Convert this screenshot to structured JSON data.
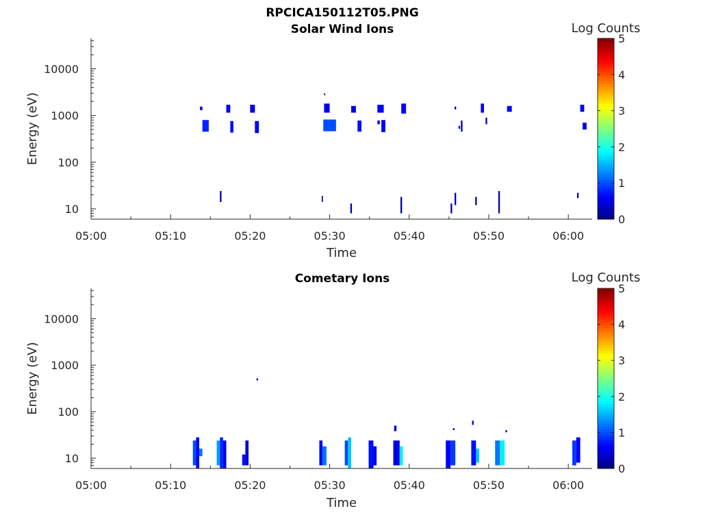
{
  "figure_title": "RPCICA150112T05.PNG",
  "colorbar": {
    "label": "Log Counts",
    "ticks": [
      "0",
      "1",
      "2",
      "3",
      "4",
      "5"
    ],
    "range": [
      0,
      5
    ],
    "colormap": "jet"
  },
  "chart_data": [
    {
      "type": "heatmap",
      "title": "Solar Wind Ions",
      "xlabel": "Time",
      "ylabel": "Energy (eV)",
      "ylog": true,
      "ylim": [
        6,
        45000
      ],
      "xlim_minutes": [
        0,
        63
      ],
      "xticks": [
        "05:00",
        "05:10",
        "05:20",
        "05:30",
        "05:40",
        "05:50",
        "06:00"
      ],
      "yticks": [
        "10",
        "100",
        "1000",
        "10000"
      ],
      "data": [
        {
          "t": [
            13.7,
            14.0
          ],
          "e": [
            1300,
            1550
          ],
          "v": 0.5
        },
        {
          "t": [
            14.0,
            14.8
          ],
          "e": [
            450,
            800
          ],
          "v": 0.8
        },
        {
          "t": [
            16.2,
            16.4
          ],
          "e": [
            14,
            24
          ],
          "v": 0.2
        },
        {
          "t": [
            17.0,
            17.5
          ],
          "e": [
            1150,
            1700
          ],
          "v": 0.6
        },
        {
          "t": [
            17.5,
            17.9
          ],
          "e": [
            430,
            760
          ],
          "v": 0.7
        },
        {
          "t": [
            20.0,
            20.6
          ],
          "e": [
            1150,
            1700
          ],
          "v": 0.5
        },
        {
          "t": [
            20.6,
            21.1
          ],
          "e": [
            420,
            760
          ],
          "v": 0.6
        },
        {
          "t": [
            29.3,
            29.4
          ],
          "e": [
            2700,
            3000
          ],
          "v": 0.2
        },
        {
          "t": [
            29.3,
            30.0
          ],
          "e": [
            1150,
            1800
          ],
          "v": 0.6
        },
        {
          "t": [
            29.2,
            30.8
          ],
          "e": [
            460,
            820
          ],
          "v": 1.0
        },
        {
          "t": [
            29.0,
            29.15
          ],
          "e": [
            14,
            19
          ],
          "v": 0.2
        },
        {
          "t": [
            32.6,
            32.8
          ],
          "e": [
            8,
            13
          ],
          "v": 0.2
        },
        {
          "t": [
            32.7,
            33.3
          ],
          "e": [
            1150,
            1600
          ],
          "v": 0.5
        },
        {
          "t": [
            33.5,
            34.0
          ],
          "e": [
            450,
            780
          ],
          "v": 0.7
        },
        {
          "t": [
            36.0,
            36.8
          ],
          "e": [
            1150,
            1700
          ],
          "v": 0.6
        },
        {
          "t": [
            36.0,
            36.3
          ],
          "e": [
            650,
            780
          ],
          "v": 0.4
        },
        {
          "t": [
            36.5,
            37.0
          ],
          "e": [
            440,
            800
          ],
          "v": 0.6
        },
        {
          "t": [
            38.9,
            39.1
          ],
          "e": [
            8,
            18
          ],
          "v": 0.2
        },
        {
          "t": [
            39.0,
            39.6
          ],
          "e": [
            1100,
            1800
          ],
          "v": 0.6
        },
        {
          "t": [
            45.2,
            45.4
          ],
          "e": [
            8,
            13
          ],
          "v": 0.2
        },
        {
          "t": [
            45.7,
            45.9
          ],
          "e": [
            12,
            22
          ],
          "v": 0.2
        },
        {
          "t": [
            45.7,
            45.9
          ],
          "e": [
            1350,
            1550
          ],
          "v": 0.3
        },
        {
          "t": [
            46.2,
            46.4
          ],
          "e": [
            520,
            600
          ],
          "v": 0.3
        },
        {
          "t": [
            46.5,
            46.7
          ],
          "e": [
            450,
            780
          ],
          "v": 0.3
        },
        {
          "t": [
            48.3,
            48.5
          ],
          "e": [
            12,
            18
          ],
          "v": 0.2
        },
        {
          "t": [
            49.0,
            49.4
          ],
          "e": [
            1150,
            1800
          ],
          "v": 0.5
        },
        {
          "t": [
            49.6,
            49.8
          ],
          "e": [
            650,
            900
          ],
          "v": 0.3
        },
        {
          "t": [
            51.2,
            51.4
          ],
          "e": [
            8,
            24
          ],
          "v": 0.2
        },
        {
          "t": [
            52.3,
            52.9
          ],
          "e": [
            1200,
            1600
          ],
          "v": 0.6
        },
        {
          "t": [
            61.1,
            61.3
          ],
          "e": [
            17,
            22
          ],
          "v": 0.2
        },
        {
          "t": [
            61.5,
            62.0
          ],
          "e": [
            1200,
            1700
          ],
          "v": 0.6
        },
        {
          "t": [
            61.8,
            62.3
          ],
          "e": [
            500,
            700
          ],
          "v": 0.5
        }
      ]
    },
    {
      "type": "heatmap",
      "title": "Cometary Ions",
      "xlabel": "Time",
      "ylabel": "Energy (eV)",
      "ylog": true,
      "ylim": [
        6,
        45000
      ],
      "xlim_minutes": [
        0,
        63
      ],
      "xticks": [
        "05:00",
        "05:10",
        "05:20",
        "05:30",
        "05:40",
        "05:50",
        "06:00"
      ],
      "yticks": [
        "10",
        "100",
        "1000",
        "10000"
      ],
      "data": [
        {
          "t": [
            20.8,
            21.0
          ],
          "e": [
            470,
            520
          ],
          "v": 0.3
        },
        {
          "t": [
            12.8,
            13.2
          ],
          "e": [
            7,
            24
          ],
          "v": 1.0
        },
        {
          "t": [
            13.2,
            13.6
          ],
          "e": [
            6,
            28
          ],
          "v": 0.6
        },
        {
          "t": [
            13.6,
            14.0
          ],
          "e": [
            11,
            16
          ],
          "v": 1.2
        },
        {
          "t": [
            15.8,
            16.2
          ],
          "e": [
            7,
            24
          ],
          "v": 1.4
        },
        {
          "t": [
            16.2,
            16.6
          ],
          "e": [
            6,
            28
          ],
          "v": 0.8
        },
        {
          "t": [
            16.6,
            17.0
          ],
          "e": [
            6,
            24
          ],
          "v": 0.6
        },
        {
          "t": [
            19.0,
            19.4
          ],
          "e": [
            7,
            12
          ],
          "v": 0.7
        },
        {
          "t": [
            19.4,
            19.8
          ],
          "e": [
            7,
            24
          ],
          "v": 0.4
        },
        {
          "t": [
            28.7,
            29.1
          ],
          "e": [
            7,
            24
          ],
          "v": 0.6
        },
        {
          "t": [
            29.1,
            29.6
          ],
          "e": [
            7,
            18
          ],
          "v": 1.2
        },
        {
          "t": [
            31.9,
            32.3
          ],
          "e": [
            7,
            24
          ],
          "v": 1.0
        },
        {
          "t": [
            32.3,
            32.7
          ],
          "e": [
            6,
            28
          ],
          "v": 1.6
        },
        {
          "t": [
            34.9,
            35.5
          ],
          "e": [
            6,
            24
          ],
          "v": 0.7
        },
        {
          "t": [
            35.5,
            35.9
          ],
          "e": [
            7,
            18
          ],
          "v": 0.5
        },
        {
          "t": [
            38.1,
            38.4
          ],
          "e": [
            38,
            50
          ],
          "v": 0.4
        },
        {
          "t": [
            38.0,
            38.8
          ],
          "e": [
            7,
            24
          ],
          "v": 0.5
        },
        {
          "t": [
            38.8,
            39.2
          ],
          "e": [
            7,
            18
          ],
          "v": 1.8
        },
        {
          "t": [
            44.6,
            45.2
          ],
          "e": [
            6,
            24
          ],
          "v": 0.6
        },
        {
          "t": [
            45.2,
            45.8
          ],
          "e": [
            7,
            24
          ],
          "v": 0.9
        },
        {
          "t": [
            45.5,
            45.7
          ],
          "e": [
            40,
            44
          ],
          "v": 0.3
        },
        {
          "t": [
            47.8,
            48.4
          ],
          "e": [
            7,
            24
          ],
          "v": 0.7
        },
        {
          "t": [
            48.4,
            48.8
          ],
          "e": [
            8,
            16
          ],
          "v": 1.6
        },
        {
          "t": [
            47.9,
            48.1
          ],
          "e": [
            52,
            64
          ],
          "v": 0.3
        },
        {
          "t": [
            50.8,
            51.4
          ],
          "e": [
            7,
            24
          ],
          "v": 1.2
        },
        {
          "t": [
            51.4,
            52.0
          ],
          "e": [
            7,
            24
          ],
          "v": 1.8
        },
        {
          "t": [
            52.1,
            52.3
          ],
          "e": [
            36,
            40
          ],
          "v": 0.3
        },
        {
          "t": [
            60.5,
            61.0
          ],
          "e": [
            7,
            24
          ],
          "v": 0.9
        },
        {
          "t": [
            61.0,
            61.5
          ],
          "e": [
            8,
            28
          ],
          "v": 0.6
        }
      ]
    }
  ]
}
